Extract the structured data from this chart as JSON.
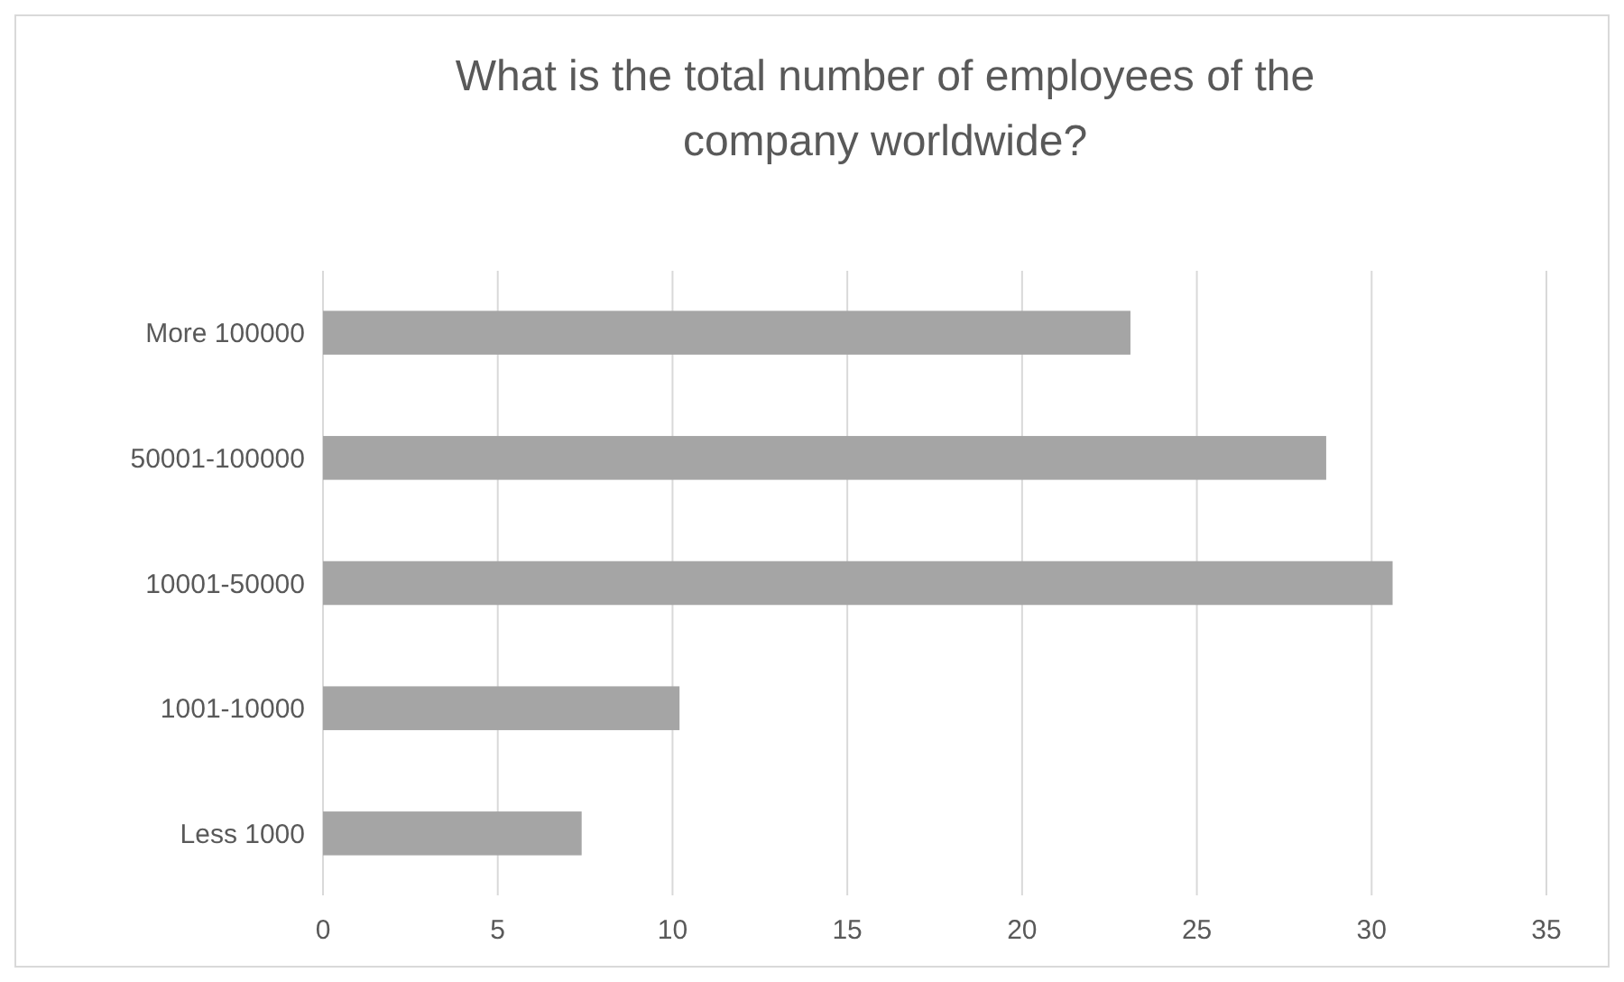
{
  "chart_data": {
    "type": "bar",
    "orientation": "horizontal",
    "title": "What is the total number of employees of the company worldwide?",
    "categories": [
      "More 100000",
      "50001-100000",
      "10001-50000",
      "1001-10000",
      "Less 1000"
    ],
    "values": [
      23.1,
      28.7,
      30.6,
      10.2,
      7.4
    ],
    "color": "#a5a5a5",
    "xlim": [
      0,
      35
    ],
    "xticks": [
      0,
      5,
      10,
      15,
      20,
      25,
      30,
      35
    ],
    "grid": "x"
  }
}
